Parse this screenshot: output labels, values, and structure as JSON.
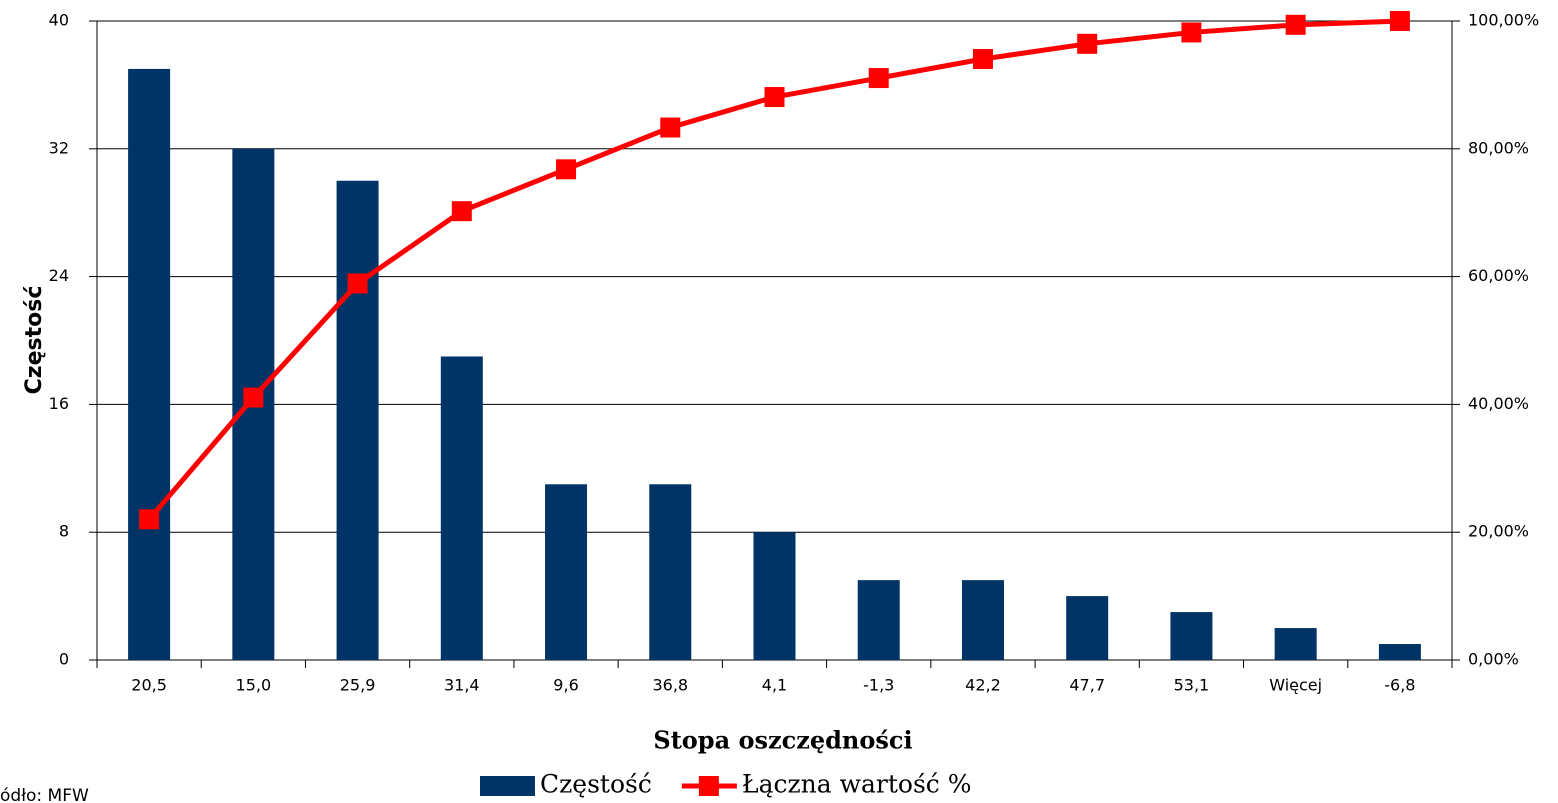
{
  "chart_data": {
    "type": "bar",
    "x_label": "Stopa oszczędności",
    "y_label": "Częstość",
    "note": "ódło: MFW",
    "categories": [
      "20,5",
      "15,0",
      "25,9",
      "31,4",
      "9,6",
      "36,8",
      "4,1",
      "-1,3",
      "42,2",
      "47,7",
      "53,1",
      "Więcej",
      "-6,8"
    ],
    "series": [
      {
        "name": "Częstość",
        "type": "bar",
        "color": "#003366",
        "axis": "y",
        "values": [
          37,
          32,
          30,
          19,
          11,
          11,
          8,
          5,
          5,
          4,
          3,
          2,
          1
        ]
      },
      {
        "name": "Łączna wartość %",
        "type": "line",
        "color": "#ff0000",
        "axis": "y2",
        "values": [
          22.02,
          41.07,
          58.93,
          70.24,
          76.79,
          83.33,
          88.1,
          91.07,
          94.05,
          96.43,
          98.21,
          99.4,
          100
        ]
      }
    ],
    "ylim": [
      0,
      40
    ],
    "yticks": [
      0,
      8,
      16,
      24,
      32,
      40
    ],
    "y2lim": [
      0,
      100
    ],
    "y2ticks": [
      {
        "value": 0,
        "label": "0,00%"
      },
      {
        "value": 20,
        "label": "20,00%"
      },
      {
        "value": 40,
        "label": "40,00%"
      },
      {
        "value": 60,
        "label": "60,00%"
      },
      {
        "value": 80,
        "label": "80,00%"
      },
      {
        "value": 100,
        "label": "100,00%"
      }
    ],
    "grid": true,
    "legend": "bottom"
  }
}
